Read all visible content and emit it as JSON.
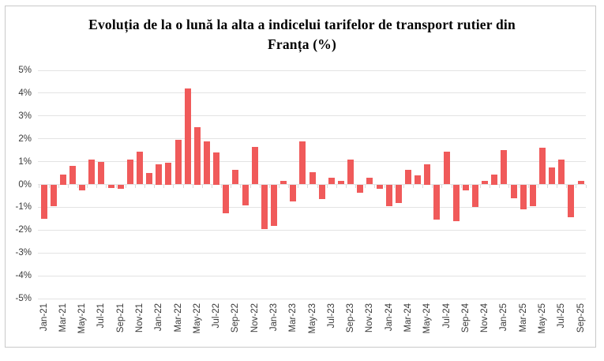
{
  "page": {
    "background": "#ffffff",
    "border_color": "#c9c9c9"
  },
  "chart_data": {
    "type": "bar",
    "title": "Evoluția de la o lună la alta a indicelui tarifelor de transport rutier din Franța (%)",
    "title_lines": [
      "Evoluția de la o lună la alta a indicelui tarifelor de transport rutier din",
      "Franța (%)"
    ],
    "categories": [
      "Jan-21",
      "Feb-21",
      "Mar-21",
      "Apr-21",
      "May-21",
      "Jun-21",
      "Jul-21",
      "Aug-21",
      "Sep-21",
      "Oct-21",
      "Nov-21",
      "Dec-21",
      "Jan-22",
      "Feb-22",
      "Mar-22",
      "Apr-22",
      "May-22",
      "Jun-22",
      "Jul-22",
      "Aug-22",
      "Sep-22",
      "Oct-22",
      "Nov-22",
      "Dec-22",
      "Jan-23",
      "Feb-23",
      "Mar-23",
      "Apr-23",
      "May-23",
      "Jun-23",
      "Jul-23",
      "Aug-23",
      "Sep-23",
      "Oct-23",
      "Nov-23",
      "Dec-23",
      "Jan-24",
      "Feb-24",
      "Mar-24",
      "Apr-24",
      "May-24",
      "Jun-24",
      "Jul-24",
      "Aug-24",
      "Sep-24",
      "Oct-24",
      "Nov-24",
      "Dec-24",
      "Jan-25",
      "Feb-25",
      "Mar-25",
      "Apr-25",
      "May-25",
      "Jun-25",
      "Jul-25",
      "Aug-25",
      "Sep-25"
    ],
    "values": [
      -1.5,
      -0.95,
      0.45,
      0.8,
      -0.25,
      1.1,
      1.0,
      -0.15,
      -0.2,
      1.1,
      1.45,
      0.5,
      0.9,
      0.95,
      1.95,
      4.2,
      2.5,
      1.9,
      1.4,
      -1.25,
      0.65,
      -0.9,
      1.65,
      -1.95,
      -1.8,
      0.15,
      -0.75,
      1.9,
      0.55,
      -0.65,
      0.3,
      0.15,
      1.1,
      -0.35,
      0.3,
      -0.2,
      -0.95,
      -0.8,
      0.65,
      0.4,
      0.9,
      -1.55,
      1.45,
      -1.6,
      -0.25,
      -1.0,
      0.15,
      0.45,
      1.5,
      -0.6,
      -1.1,
      -0.95,
      1.6,
      0.75,
      1.1,
      -1.45,
      0.15
    ],
    "x_tick_labels": [
      "Jan-21",
      "Mar-21",
      "May-21",
      "Jul-21",
      "Sep-21",
      "Nov-21",
      "Jan-22",
      "Mar-22",
      "May-22",
      "Jul-22",
      "Sep-22",
      "Nov-22",
      "Jan-23",
      "Mar-23",
      "May-23",
      "Jul-23",
      "Sep-23",
      "Nov-23",
      "Jan-24",
      "Mar-24",
      "May-24",
      "Jul-24",
      "Sep-24",
      "Nov-24",
      "Jan-25",
      "Mar-25",
      "May-25",
      "Jul-25",
      "Sep-25"
    ],
    "y_tick_labels": [
      "5%",
      "4%",
      "3%",
      "2%",
      "1%",
      "0%",
      "-1%",
      "-2%",
      "-3%",
      "-4%",
      "-5%"
    ],
    "ylim": [
      -5,
      5
    ],
    "y_unit": "%",
    "grid": true,
    "legend": "none",
    "bar_color": "#f05a5a",
    "gridline_color": "#e3e3e3",
    "tick_color": "#d9d9d9",
    "tick_label_color": "#3a3a3a"
  }
}
